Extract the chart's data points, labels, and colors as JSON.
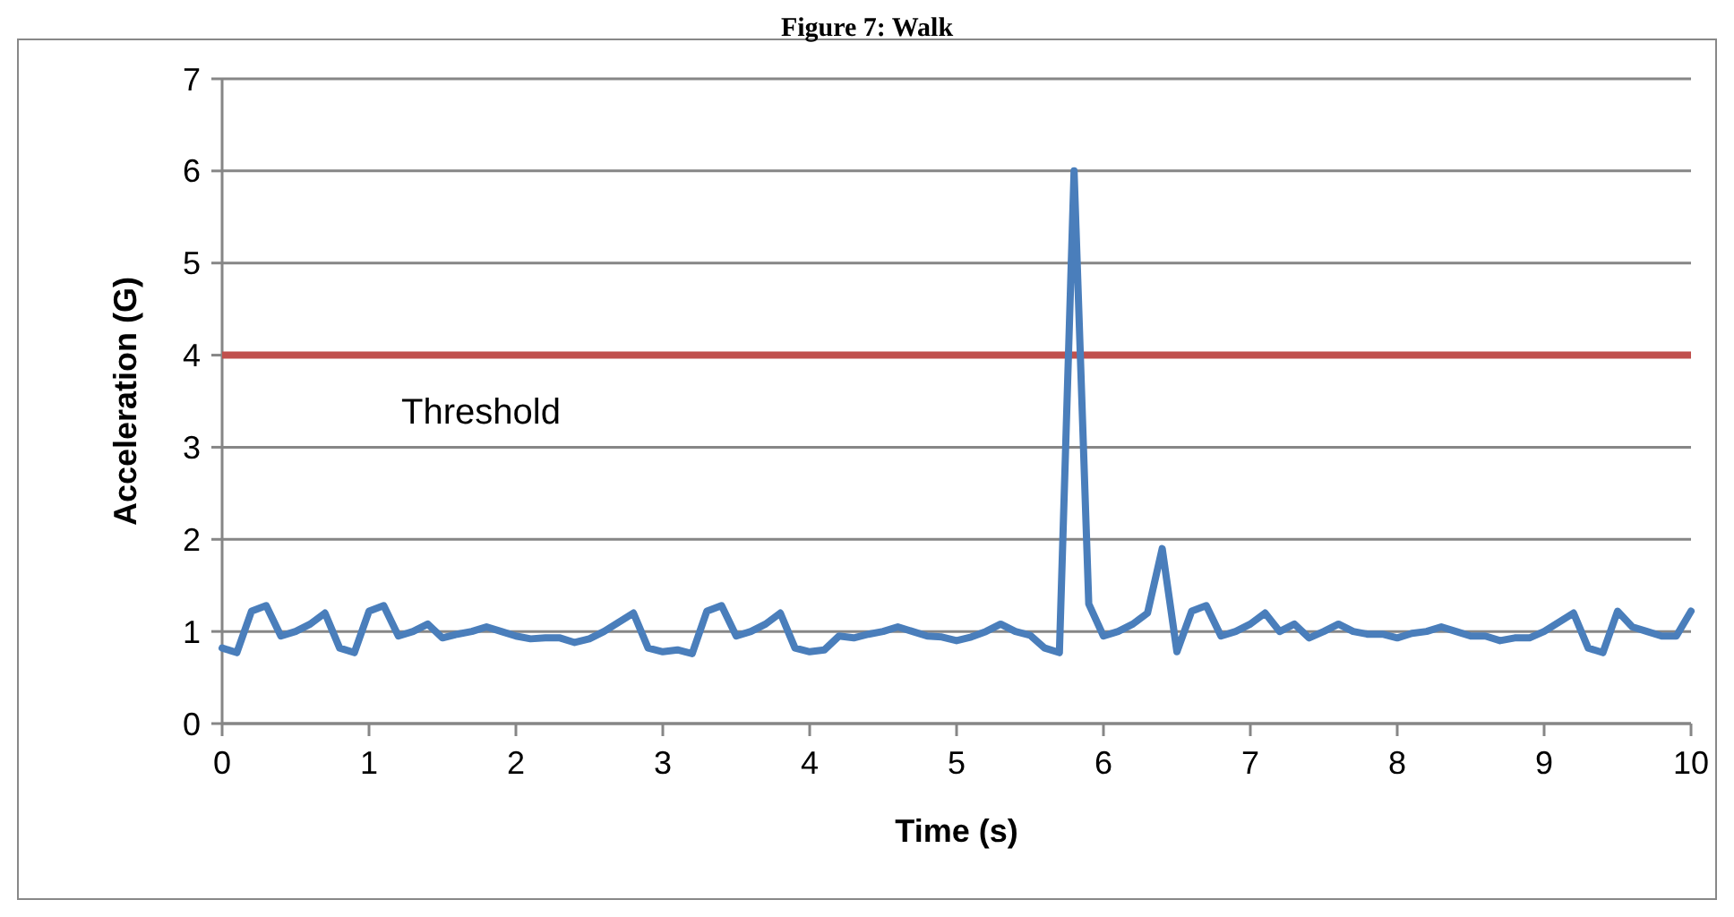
{
  "chart_data": {
    "type": "line",
    "title": "Figure 7: Walk",
    "xlabel": "Time (s)",
    "ylabel": "Acceleration (G)",
    "x": [
      0,
      0.1,
      0.2,
      0.3,
      0.4,
      0.5,
      0.6,
      0.7,
      0.8,
      0.9,
      1,
      1.1,
      1.2,
      1.3,
      1.4,
      1.5,
      1.6,
      1.7,
      1.8,
      1.9,
      2,
      2.1,
      2.2,
      2.3,
      2.4,
      2.5,
      2.6,
      2.7,
      2.8,
      2.9,
      3,
      3.1,
      3.2,
      3.3,
      3.4,
      3.5,
      3.6,
      3.7,
      3.8,
      3.9,
      4,
      4.1,
      4.2,
      4.3,
      4.4,
      4.5,
      4.6,
      4.7,
      4.8,
      4.9,
      5,
      5.1,
      5.2,
      5.3,
      5.4,
      5.5,
      5.6,
      5.7,
      5.8,
      5.9,
      6,
      6.1,
      6.2,
      6.3,
      6.4,
      6.5,
      6.6,
      6.7,
      6.8,
      6.9,
      7,
      7.1,
      7.2,
      7.3,
      7.4,
      7.5,
      7.6,
      7.7,
      7.8,
      7.9,
      8,
      8.1,
      8.2,
      8.3,
      8.4,
      8.5,
      8.6,
      8.7,
      8.8,
      8.9,
      9,
      9.1,
      9.2,
      9.3,
      9.4,
      9.5,
      9.6,
      9.7,
      9.8,
      9.9,
      10
    ],
    "series": [
      {
        "color": "#4a7ebb",
        "values": [
          0.82,
          0.77,
          1.22,
          1.28,
          0.95,
          1.0,
          1.08,
          1.2,
          0.82,
          0.77,
          1.22,
          1.28,
          0.95,
          1.0,
          1.08,
          0.93,
          0.97,
          1.0,
          1.05,
          1.0,
          0.95,
          0.92,
          0.93,
          0.93,
          0.88,
          0.92,
          1.0,
          1.1,
          1.2,
          0.82,
          0.78,
          0.8,
          0.76,
          1.22,
          1.28,
          0.95,
          1.0,
          1.08,
          1.2,
          0.82,
          0.78,
          0.8,
          0.95,
          0.93,
          0.97,
          1.0,
          1.05,
          1.0,
          0.95,
          0.94,
          0.9,
          0.94,
          1.0,
          1.08,
          1.0,
          0.96,
          0.82,
          0.77,
          6.0,
          1.3,
          0.95,
          1.0,
          1.08,
          1.2,
          1.9,
          0.78,
          1.22,
          1.28,
          0.95,
          1.0,
          1.08,
          1.2,
          1.0,
          1.08,
          0.93,
          1.0,
          1.08,
          1.0,
          0.97,
          0.97,
          0.93,
          0.98,
          1.0,
          1.05,
          1.0,
          0.95,
          0.95,
          0.9,
          0.93,
          0.93,
          1.0,
          1.1,
          1.2,
          0.82,
          0.77,
          1.22,
          1.05,
          1.0,
          0.95,
          0.95,
          1.22
        ]
      }
    ],
    "xlim": [
      0,
      10
    ],
    "xticks": [
      0,
      1,
      2,
      3,
      4,
      5,
      6,
      7,
      8,
      9,
      10
    ],
    "ylim": [
      0,
      7
    ],
    "yticks": [
      0,
      1,
      2,
      3,
      4,
      5,
      6,
      7
    ],
    "grid": "y",
    "marker": "none",
    "line_style": "solid",
    "ref_lines": [
      {
        "axis": "y",
        "value": 4,
        "label": "Threshold",
        "color": "#c0504d"
      }
    ]
  }
}
